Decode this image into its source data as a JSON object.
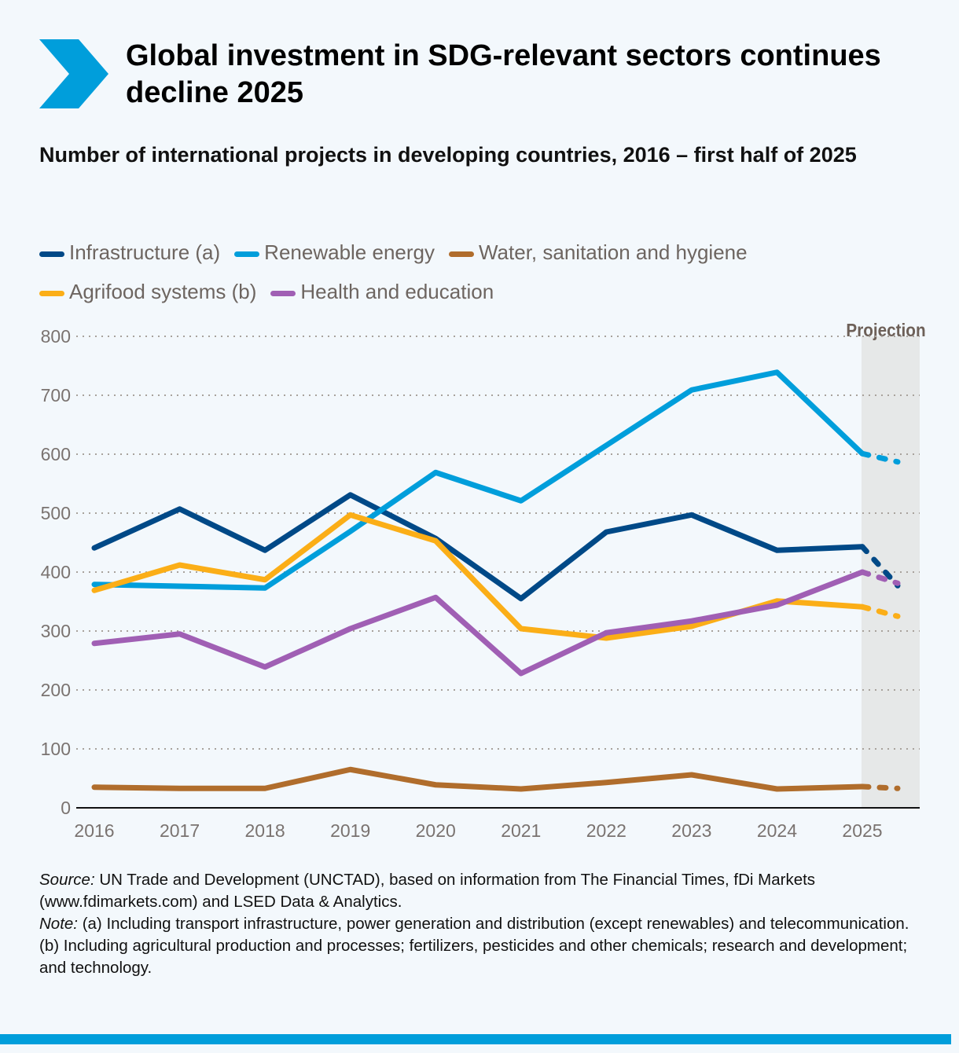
{
  "title": "Global investment in SDG-relevant sectors continues decline 2025",
  "subtitle": "Number of international projects in developing countries, 2016 – first half of 2025",
  "colors": {
    "accent": "#009edb",
    "projection_band": "#e6e8e8"
  },
  "notes": {
    "source_label": "Source:",
    "source_text": " UN Trade and Development (UNCTAD), based on information from The Financial Times, fDi Markets (www.fdimarkets.com) and LSED Data & Analytics.",
    "note_label": "Note:",
    "note_a": " (a) Including transport infrastructure, power generation and distribution (except renewables) and telecommunication.",
    "note_b": "(b) Including agricultural production and processes; fertilizers, pesticides and other chemicals; research and development; and technology."
  },
  "chart_data": {
    "type": "line",
    "x": [
      2016,
      2017,
      2018,
      2019,
      2020,
      2021,
      2022,
      2023,
      2024,
      2025
    ],
    "x_tick_labels": [
      "2016",
      "2017",
      "2018",
      "2019",
      "2020",
      "2021",
      "2022",
      "2023",
      "2024",
      "2025"
    ],
    "ylim": [
      0,
      800
    ],
    "y_ticks": [
      "0",
      "100",
      "200",
      "300",
      "400",
      "500",
      "600",
      "700",
      "800"
    ],
    "grid": true,
    "legend_position": "top",
    "projection_label": "Projection",
    "series": [
      {
        "name": "Infrastructure (a)",
        "color": "#004987",
        "values": [
          441,
          507,
          437,
          531,
          457,
          355,
          468,
          497,
          437,
          443
        ],
        "projection": 377
      },
      {
        "name": "Renewable energy",
        "color": "#009edb",
        "values": [
          379,
          376,
          373,
          469,
          569,
          521,
          615,
          709,
          739,
          601
        ],
        "projection": 587
      },
      {
        "name": "Water, sanitation and hygiene",
        "color": "#b06d2c",
        "values": [
          35,
          33,
          33,
          65,
          39,
          32,
          43,
          56,
          32,
          36
        ],
        "projection": 33
      },
      {
        "name": "Agrifood systems (b)",
        "color": "#fbae17",
        "values": [
          369,
          412,
          387,
          497,
          453,
          304,
          288,
          308,
          351,
          341
        ],
        "projection": 325
      },
      {
        "name": "Health and education",
        "color": "#a05fb4",
        "values": [
          279,
          295,
          239,
          304,
          357,
          228,
          297,
          317,
          344,
          400
        ],
        "projection": 381
      }
    ]
  }
}
